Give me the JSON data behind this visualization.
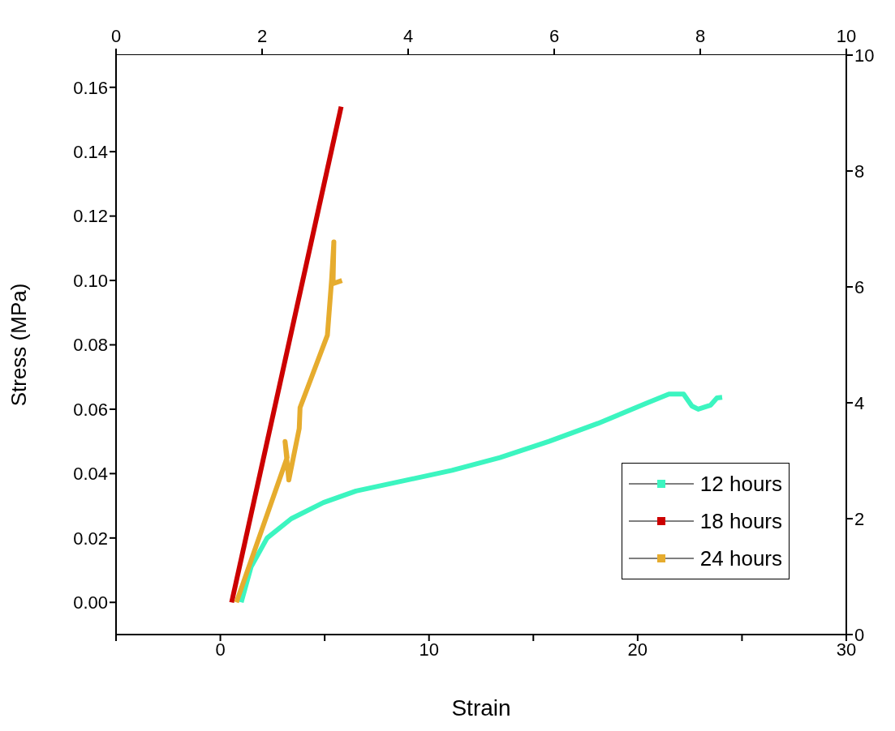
{
  "chart_data": {
    "type": "line",
    "xlabel": "Strain",
    "ylabel": "Stress (MPa)",
    "xlim": [
      -5,
      30
    ],
    "xticks": [
      {
        "value": -5,
        "label": null
      },
      0,
      {
        "value": 5,
        "label": null
      },
      10,
      {
        "value": 15,
        "label": null
      },
      20,
      {
        "value": 25,
        "label": null
      },
      30
    ],
    "ylim": [
      -0.01,
      0.17
    ],
    "yticks": [
      {
        "value": 0,
        "label": "0.00"
      },
      {
        "value": 0.02,
        "label": "0.02"
      },
      {
        "value": 0.04,
        "label": "0.04"
      },
      {
        "value": 0.06,
        "label": "0.06"
      },
      {
        "value": 0.08,
        "label": "0.08"
      },
      {
        "value": 0.1,
        "label": "0.10"
      },
      {
        "value": 0.12,
        "label": "0.12"
      },
      {
        "value": 0.14,
        "label": "0.14"
      },
      {
        "value": 0.16,
        "label": "0.16"
      }
    ],
    "x2lim": [
      0,
      10
    ],
    "x2ticks": [
      0,
      2,
      4,
      6,
      8,
      10
    ],
    "y2lim": [
      0,
      10
    ],
    "y2ticks": [
      0,
      2,
      4,
      6,
      8,
      10
    ],
    "legend": "bottom right",
    "grid": false,
    "series": [
      {
        "name": "12 hours",
        "color": "#3cf5c0",
        "x": [
          1.0,
          1.47,
          2.24,
          3.4,
          4.94,
          6.5,
          8.8,
          11.1,
          13.4,
          15.75,
          18.1,
          20.4,
          21.5,
          22.2,
          22.6,
          22.9,
          23.5,
          23.8,
          24.05
        ],
        "values": [
          0,
          0.011,
          0.02,
          0.026,
          0.031,
          0.0346,
          0.0378,
          0.041,
          0.045,
          0.05,
          0.0556,
          0.0618,
          0.0647,
          0.0647,
          0.061,
          0.06,
          0.0613,
          0.0635,
          0.0637
        ]
      },
      {
        "name": "18 hours",
        "color": "#cc0000",
        "x": [
          0.54,
          5.79
        ],
        "values": [
          0,
          0.154
        ]
      },
      {
        "name": "24 hours",
        "color": "#e6ac2e",
        "x": [
          0.77,
          3.2,
          3.1,
          3.28,
          3.78,
          3.82,
          5.13,
          5.33,
          5.44,
          5.4,
          5.83
        ],
        "values": [
          0,
          0.045,
          0.05,
          0.038,
          0.054,
          0.0605,
          0.083,
          0.1,
          0.112,
          0.099,
          0.1
        ]
      }
    ]
  }
}
